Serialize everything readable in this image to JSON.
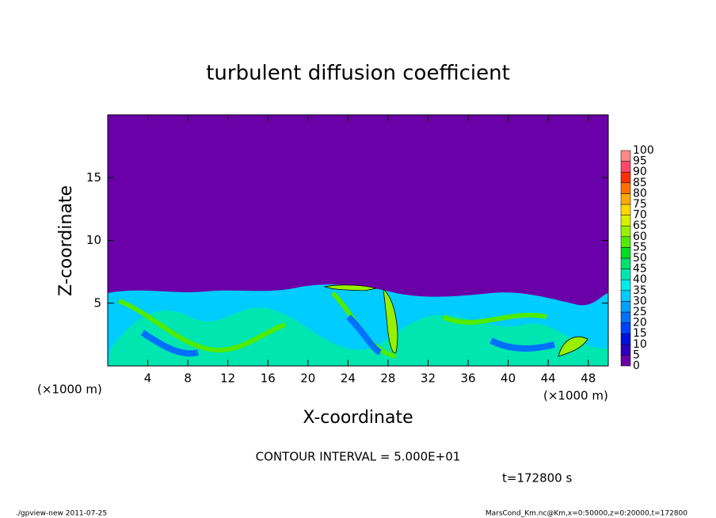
{
  "chart_data": {
    "type": "heatmap",
    "title": "turbulent diffusion coefficient",
    "xlabel": "X-coordinate",
    "ylabel": "Z-coordinate",
    "axis_unit": "(×1000 m)",
    "xlim": [
      0,
      50
    ],
    "ylim": [
      0,
      20
    ],
    "xticks": [
      4,
      8,
      12,
      16,
      20,
      24,
      28,
      32,
      36,
      40,
      44,
      48
    ],
    "yticks": [
      5,
      10,
      15
    ],
    "colorbar": {
      "levels": [
        0,
        5,
        10,
        15,
        20,
        25,
        30,
        35,
        40,
        45,
        50,
        55,
        60,
        65,
        70,
        75,
        80,
        85,
        90,
        95,
        100
      ],
      "colors": [
        "#6a00a8",
        "#2a00c0",
        "#0010e0",
        "#0040ff",
        "#0070ff",
        "#00a0ff",
        "#00ccff",
        "#00ece8",
        "#00e6b0",
        "#00e070",
        "#00dc20",
        "#50ec00",
        "#98f000",
        "#d8f000",
        "#ffd800",
        "#ffa800",
        "#ff7000",
        "#ff3000",
        "#ff4868",
        "#ff8888"
      ]
    },
    "contour_interval": "CONTOUR INTERVAL = 5.000E+01",
    "time": "t=172800 s",
    "footer_left": "./gpview-new   2011-07-25",
    "footer_right": "MarsCond_Km.nc@Km,x=0:50000,z=0:20000,t=172800"
  }
}
